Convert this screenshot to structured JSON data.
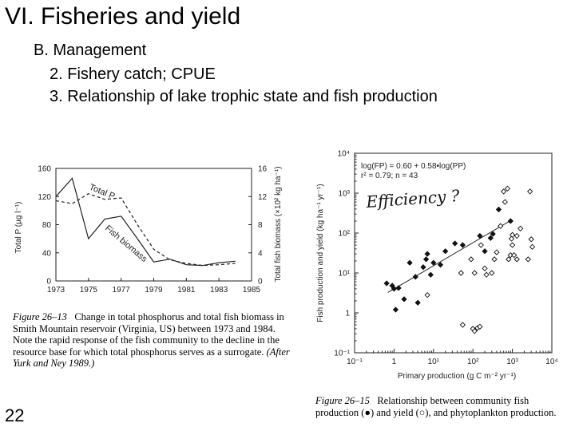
{
  "slide": {
    "title": "VI. Fisheries and yield",
    "subheading": "B. Management",
    "items": [
      "2. Fishery catch; CPUE",
      "3. Relationship of lake trophic state and fish production"
    ],
    "page_number": "22"
  },
  "figure1": {
    "caption_label": "Figure 26–13",
    "caption_text": "Change in total phosphorus and total fish biomass in Smith Mountain reservoir (Virginia, US) between 1973 and 1984. Note the rapid response of the fish community to the decline in the resource base for which total phosphorus serves as a surrogate.",
    "caption_source": "(After Yurk and Ney 1989.)"
  },
  "figure2": {
    "caption_label": "Figure 26–15",
    "caption_text": "Relationship between community fish production (●) and yield (○), and phytoplankton production.",
    "handwritten_note": "Efficiency ?"
  },
  "chart_data": [
    {
      "type": "line",
      "title": "",
      "xlabel": "",
      "ylabel": "Total P (µg l⁻¹)",
      "y2label": "Total fish biomass (×10² kg ha⁻¹)",
      "x_ticks": [
        "1973",
        "1975",
        "1977",
        "1979",
        "1981",
        "1983",
        "1985"
      ],
      "y_ticks": [
        "0",
        "40",
        "80",
        "120",
        "160"
      ],
      "y2_ticks": [
        "0",
        "4",
        "8",
        "12",
        "16"
      ],
      "xlim": [
        1973,
        1985
      ],
      "ylim": [
        0,
        160
      ],
      "y2lim": [
        0,
        16
      ],
      "grid": false,
      "series": [
        {
          "name": "Total P",
          "style": "dashed",
          "axis": "left",
          "x": [
            1973,
            1974,
            1975,
            1976,
            1977,
            1978,
            1979,
            1980,
            1981,
            1982,
            1983,
            1984
          ],
          "y": [
            114,
            110,
            124,
            116,
            118,
            80,
            45,
            30,
            25,
            22,
            23,
            25
          ]
        },
        {
          "name": "Fish biomass",
          "style": "solid",
          "axis": "right",
          "x": [
            1973,
            1974,
            1975,
            1976,
            1977,
            1978,
            1979,
            1980,
            1981,
            1982,
            1983,
            1984
          ],
          "y": [
            12.0,
            14.6,
            6.0,
            8.8,
            9.2,
            6.0,
            2.7,
            3.1,
            2.3,
            2.2,
            2.6,
            2.8
          ]
        }
      ]
    },
    {
      "type": "scatter",
      "title": "",
      "xlabel": "Primary production (g C m⁻² yr⁻¹)",
      "ylabel": "Fish production and yield (kg ha⁻¹ yr⁻¹)",
      "x_scale": "log",
      "y_scale": "log",
      "x_ticks": [
        "10⁻¹",
        "1",
        "10¹",
        "10²",
        "10³",
        "10⁴"
      ],
      "y_ticks": [
        "10⁻¹",
        "1",
        "10¹",
        "10²",
        "10³",
        "10⁴"
      ],
      "xlim": [
        0.1,
        10000
      ],
      "ylim": [
        0.1,
        10000
      ],
      "annotations": [
        "log(FP) = 0.60 + 0.58•log(PP)",
        "r² = 0.79; n = 43"
      ],
      "regression": {
        "intercept": 0.6,
        "slope": 0.58,
        "x_range": [
          0.7,
          900
        ]
      },
      "series": [
        {
          "name": "Fish production",
          "marker": "filled-diamond",
          "x": [
            0.65,
            0.9,
            1.0,
            1.3,
            1.1,
            1.8,
            2.5,
            3.5,
            4.0,
            5.5,
            7.0,
            6.5,
            8.5,
            10,
            15,
            20,
            35,
            55,
            150,
            200,
            280,
            320,
            450,
            900
          ],
          "y": [
            5.5,
            4.8,
            4.0,
            4.2,
            1.2,
            2.2,
            18,
            8.0,
            1.8,
            14,
            30,
            22,
            9.0,
            18,
            16,
            35,
            55,
            50,
            85,
            35,
            75,
            95,
            390,
            200
          ]
        },
        {
          "name": "Yield",
          "marker": "open-diamond",
          "x": [
            7,
            50,
            55,
            90,
            100,
            110,
            110,
            130,
            150,
            160,
            200,
            220,
            300,
            350,
            400,
            500,
            600,
            650,
            750,
            800,
            900,
            950,
            1000,
            1000,
            1100,
            1300,
            1300,
            1600,
            2500,
            2800,
            3000,
            3200
          ],
          "y": [
            2.8,
            10,
            0.5,
            22,
            0.4,
            0.35,
            10,
            0.42,
            0.45,
            50,
            13,
            9,
            10,
            22,
            33,
            150,
            1100,
            600,
            1300,
            22,
            28,
            72,
            50,
            90,
            28,
            85,
            22,
            130,
            22,
            1100,
            70,
            45
          ]
        }
      ]
    }
  ]
}
